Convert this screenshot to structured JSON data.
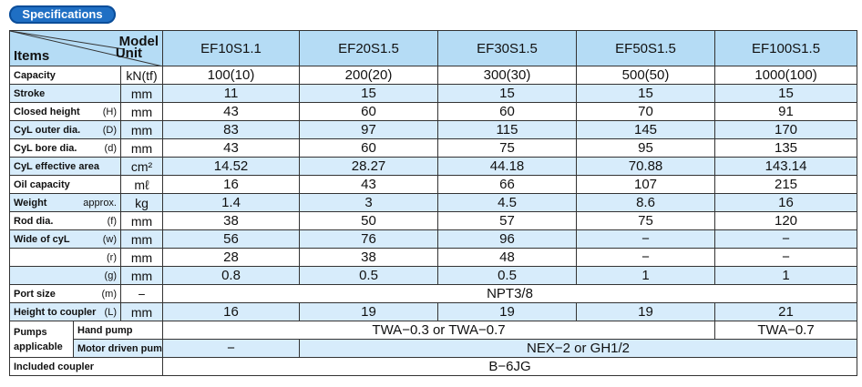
{
  "badge": "Specifications",
  "header": {
    "model": "Model",
    "unit": "Unit",
    "items": "Items",
    "models": [
      "EF10S1.1",
      "EF20S1.5",
      "EF30S1.5",
      "EF50S1.5",
      "EF100S1.5"
    ]
  },
  "rows": [
    {
      "item": "Capacity",
      "unit": "kN(tf)",
      "values": [
        "100(10)",
        "200(20)",
        "300(30)",
        "500(50)",
        "1000(100)"
      ]
    },
    {
      "item": "Stroke",
      "unit": "mm",
      "values": [
        "11",
        "15",
        "15",
        "15",
        "15"
      ]
    },
    {
      "item": "Closed height",
      "note": "(H)",
      "unit": "mm",
      "values": [
        "43",
        "60",
        "60",
        "70",
        "91"
      ]
    },
    {
      "item": "CyL outer dia.",
      "note": "(D)",
      "unit": "mm",
      "values": [
        "83",
        "97",
        "115",
        "145",
        "170"
      ]
    },
    {
      "item": "CyL bore dia.",
      "note": "(d)",
      "unit": "mm",
      "values": [
        "43",
        "60",
        "75",
        "95",
        "135"
      ]
    },
    {
      "item": "CyL effective area",
      "unit": "cm²",
      "values": [
        "14.52",
        "28.27",
        "44.18",
        "70.88",
        "143.14"
      ]
    },
    {
      "item": "Oil capacity",
      "unit": "mℓ",
      "values": [
        "16",
        "43",
        "66",
        "107",
        "215"
      ]
    },
    {
      "item": "Weight",
      "note": "approx.",
      "unit": "kg",
      "values": [
        "1.4",
        "3",
        "4.5",
        "8.6",
        "16"
      ]
    },
    {
      "item": "Rod dia.",
      "note": "(f)",
      "unit": "mm",
      "values": [
        "38",
        "50",
        "57",
        "75",
        "120"
      ]
    },
    {
      "item": "Wide of cyL",
      "note": "(w)",
      "unit": "mm",
      "values": [
        "56",
        "76",
        "96",
        "−",
        "−"
      ]
    },
    {
      "note": "(r)",
      "unit": "mm",
      "values": [
        "28",
        "38",
        "48",
        "−",
        "−"
      ]
    },
    {
      "note": "(g)",
      "unit": "mm",
      "values": [
        "0.8",
        "0.5",
        "0.5",
        "1",
        "1"
      ]
    },
    {
      "item": "Port size",
      "note": "(m)",
      "unit": "−",
      "values": [
        "NPT3/8"
      ]
    },
    {
      "item": "Height to coupler",
      "note": "(L)",
      "unit": "mm",
      "values": [
        "16",
        "19",
        "19",
        "19",
        "21"
      ]
    }
  ],
  "pumps": {
    "item": [
      "Pumps",
      "applicable"
    ],
    "rows": [
      {
        "name": "Hand pump",
        "values": [
          "TWA−0.3 or TWA−0.7",
          "TWA−0.7"
        ]
      },
      {
        "name": "Motor driven pump",
        "values": [
          "−",
          "NEX−2 or GH1/2"
        ]
      }
    ]
  },
  "coupler": {
    "item": "Included coupler",
    "values": [
      "B−6JG"
    ]
  }
}
